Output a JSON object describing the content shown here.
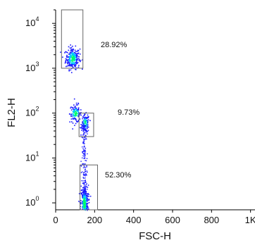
{
  "chart_data": {
    "type": "scatter",
    "xlabel": "FSC-H",
    "ylabel": "FL2-H",
    "x_scale": "linear",
    "y_scale": "log",
    "xlim": [
      0,
      1023
    ],
    "ylim": [
      0.7,
      20000
    ],
    "x_ticks": [
      {
        "value": 0,
        "label": "0"
      },
      {
        "value": 200,
        "label": "200"
      },
      {
        "value": 400,
        "label": "400"
      },
      {
        "value": 600,
        "label": "600"
      },
      {
        "value": 800,
        "label": "800"
      },
      {
        "value": 1000,
        "label": "1K"
      }
    ],
    "y_ticks": [
      {
        "value": 1,
        "base": "10",
        "exp": "0"
      },
      {
        "value": 10,
        "base": "10",
        "exp": "1"
      },
      {
        "value": 100,
        "base": "10",
        "exp": "2"
      },
      {
        "value": 1000,
        "base": "10",
        "exp": "3"
      },
      {
        "value": 10000,
        "base": "10",
        "exp": "4"
      }
    ],
    "gates": [
      {
        "label": "28.92%",
        "x_range": [
          30,
          140
        ],
        "y_range": [
          1000,
          20000
        ]
      },
      {
        "label": "9.73%",
        "x_range": [
          120,
          195
        ],
        "y_range": [
          30,
          100
        ]
      },
      {
        "label": "52.30%",
        "x_range": [
          125,
          215
        ],
        "y_range": [
          0.7,
          7
        ]
      }
    ],
    "populations": [
      {
        "x_center": 85,
        "y_center": 1700,
        "x_spread": 18,
        "y_spread_log": 0.12
      },
      {
        "x_center": 100,
        "y_center": 100,
        "x_spread": 15,
        "y_spread_log": 0.1
      },
      {
        "x_center": 150,
        "y_center": 60,
        "x_spread": 10,
        "y_spread_log": 0.1
      },
      {
        "x_center": 145,
        "y_center": 1,
        "x_spread": 10,
        "y_spread_log": 0.2
      }
    ],
    "grid": false,
    "legend": "none"
  },
  "colors": {
    "density_low": "#1a1aff",
    "density_mid": "#00c8ff",
    "density_high": "#00ff66",
    "axis": "#000000",
    "gate": "#666666"
  }
}
